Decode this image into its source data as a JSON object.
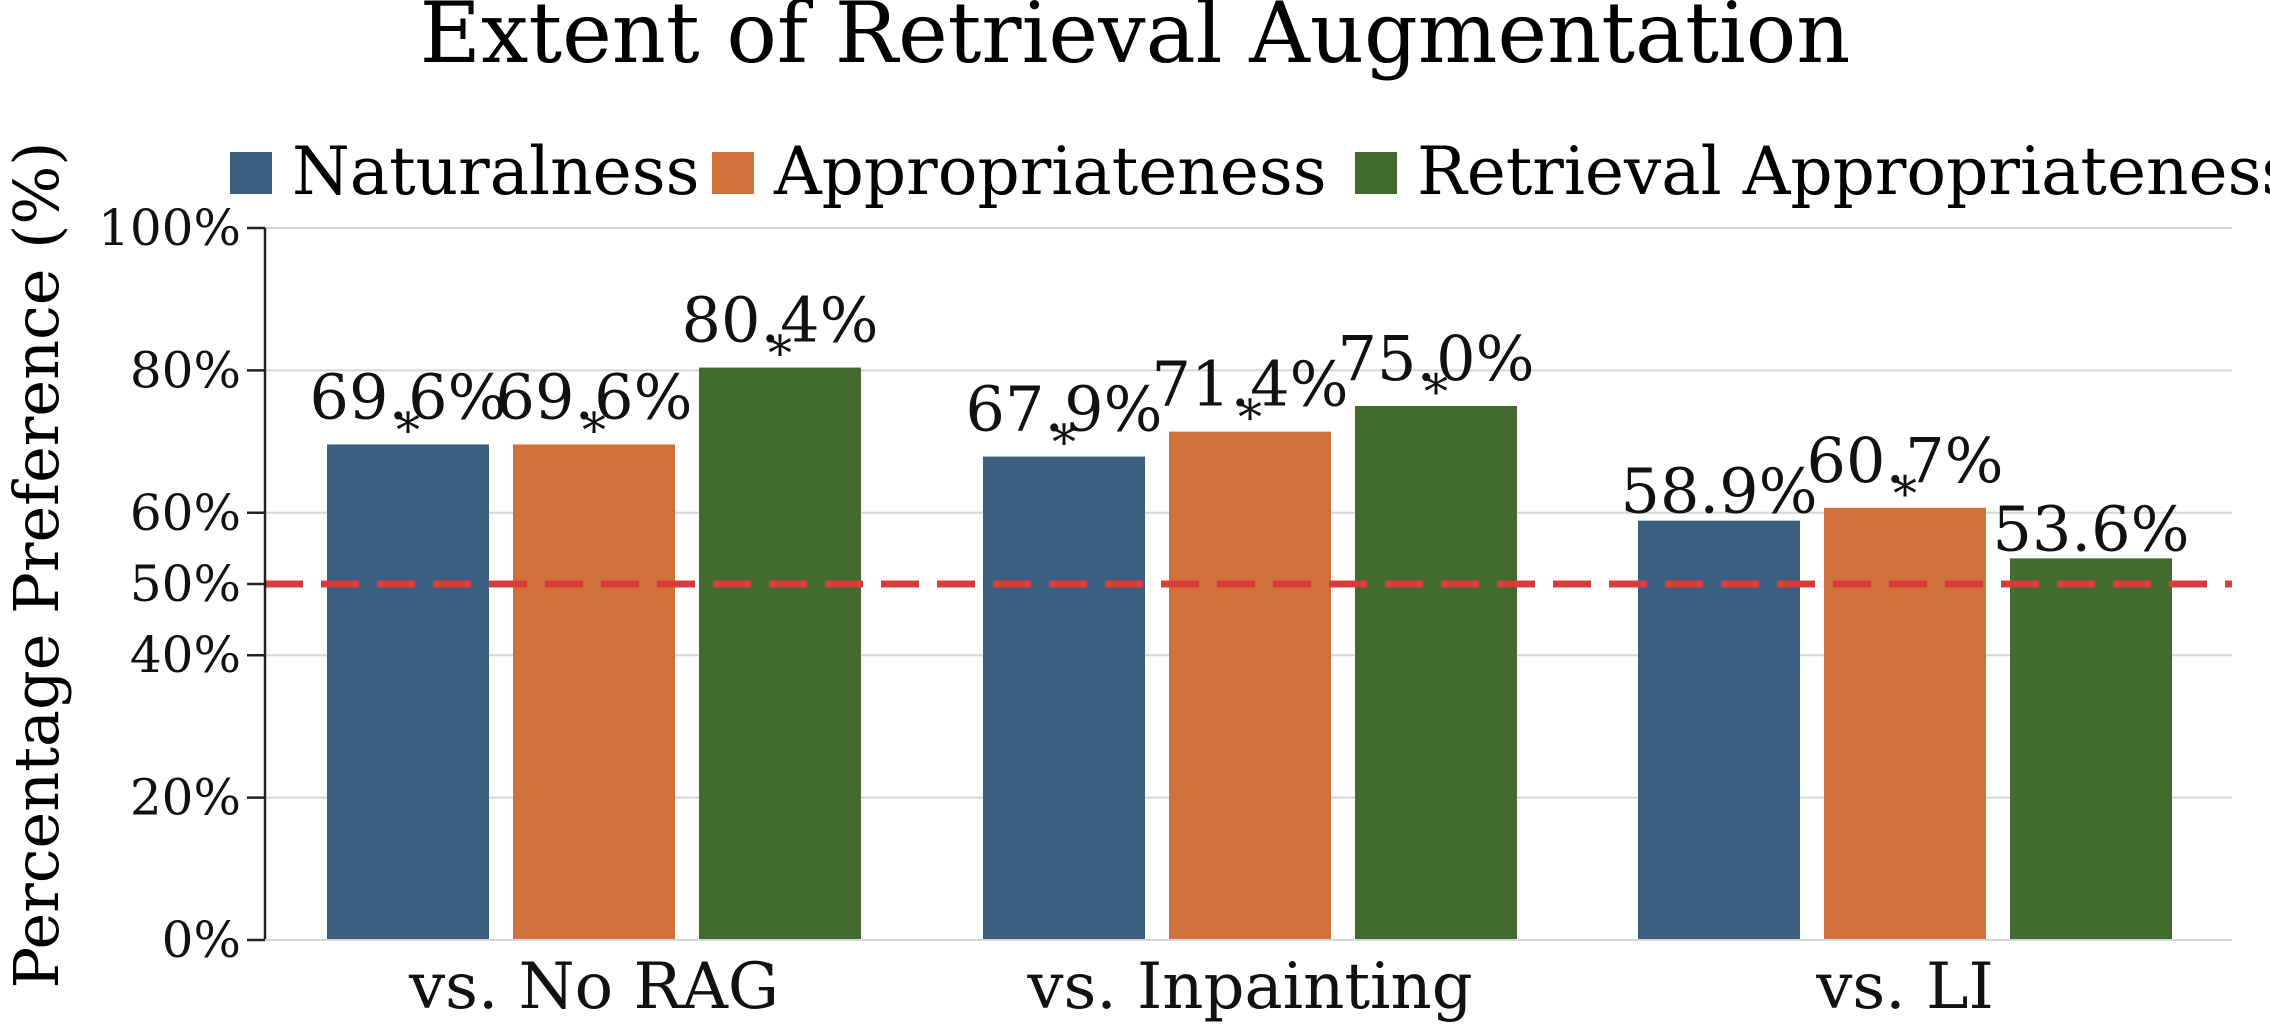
{
  "chart_data": {
    "type": "bar",
    "title": "Extent of Retrieval Augmentation",
    "xlabel": "",
    "ylabel": "Percentage Preference (%)",
    "ylim": [
      0,
      100
    ],
    "yticks": [
      0,
      20,
      40,
      50,
      60,
      80,
      100
    ],
    "ytick_labels": [
      "0%",
      "20%",
      "40%",
      "50%",
      "60%",
      "80%",
      "100%"
    ],
    "grid": true,
    "legend_position": "top",
    "categories": [
      "vs. No RAG",
      "vs. Inpainting",
      "vs. LI"
    ],
    "series": [
      {
        "name": "Naturalness",
        "color": "#3a5f80",
        "values": [
          69.6,
          67.9,
          58.9
        ],
        "labels": [
          "69.6%",
          "67.9%",
          "58.9%"
        ],
        "significant": [
          true,
          true,
          false
        ]
      },
      {
        "name": "Appropriateness",
        "color": "#d0703a",
        "values": [
          69.6,
          71.4,
          60.7
        ],
        "labels": [
          "69.6%",
          "71.4%",
          "60.7%"
        ],
        "significant": [
          true,
          true,
          true
        ]
      },
      {
        "name": "Retrieval Appropriateness",
        "color": "#436b30",
        "values": [
          80.4,
          75.0,
          53.6
        ],
        "labels": [
          "80.4%",
          "75.0%",
          "53.6%"
        ],
        "significant": [
          true,
          true,
          false
        ]
      }
    ],
    "significance_marker": "*",
    "reference_line": {
      "value": 50,
      "style": "dashed",
      "color": "#d93b3b"
    }
  }
}
